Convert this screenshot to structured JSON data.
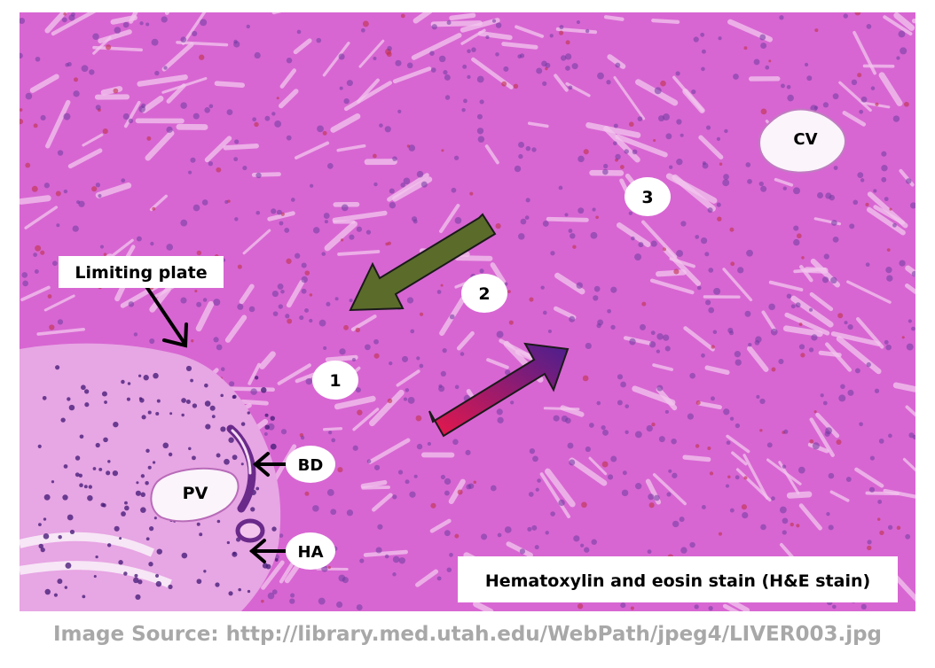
{
  "labels": {
    "limiting_plate": "Limiting plate",
    "zone_1": "1",
    "zone_2": "2",
    "zone_3": "3",
    "cv": "CV",
    "pv": "PV",
    "bd": "BD",
    "ha": "HA",
    "stain": "Hematoxylin and eosin stain (H&E stain)"
  },
  "caption": "Image Source: http://library.med.utah.edu/WebPath/jpeg4/LIVER003.jpg",
  "colors": {
    "tissue": "#d766d2",
    "sinusoid": "#f3c6ee",
    "nucleus": "#6f3aa0",
    "rbc": "#c0304a",
    "portal_tract": "#e7a6e4",
    "green_arrow": "#5b6b2a",
    "arrow_gradient_start": "#4b1f8f",
    "arrow_gradient_end": "#e8174a"
  }
}
